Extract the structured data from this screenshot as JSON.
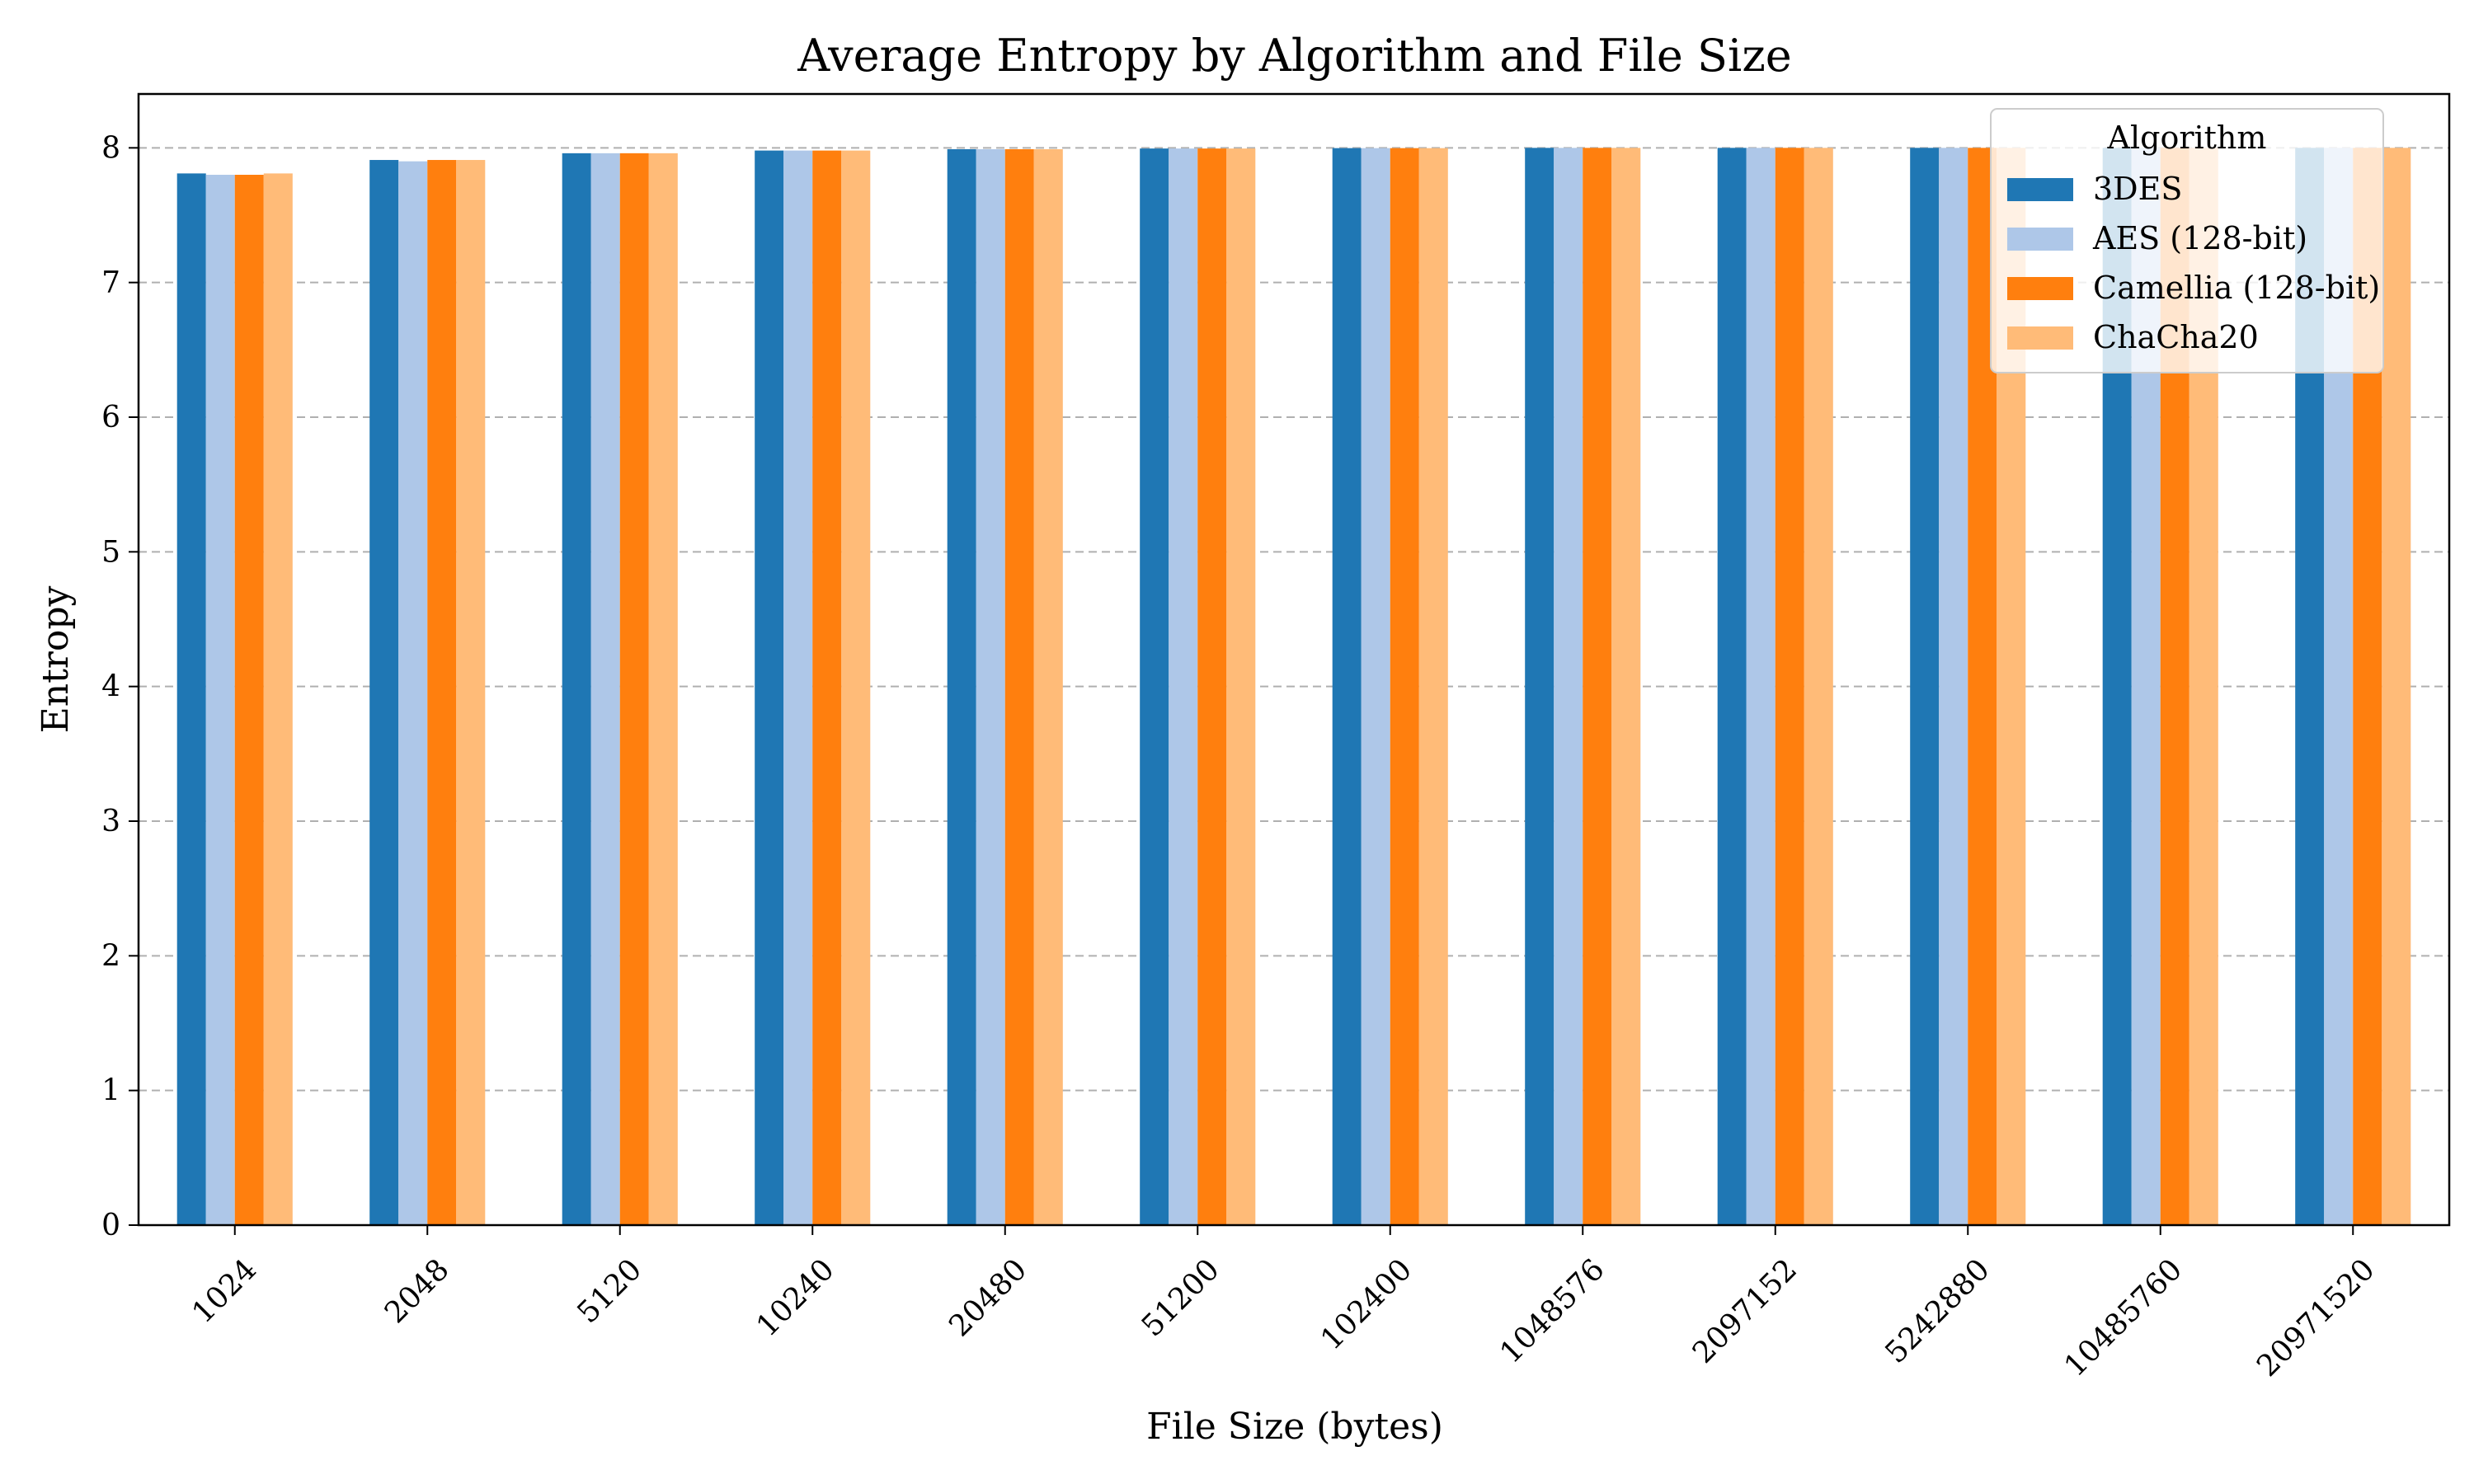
{
  "chart_data": {
    "type": "bar",
    "title": "Average Entropy by Algorithm and File Size",
    "xlabel": "File Size (bytes)",
    "ylabel": "Entropy",
    "ylim": [
      0,
      8.4
    ],
    "yticks": [
      0,
      1,
      2,
      3,
      4,
      5,
      6,
      7,
      8
    ],
    "grid": "y-dashed",
    "legend": {
      "title": "Algorithm",
      "placement": "top-right"
    },
    "categories": [
      "1024",
      "2048",
      "5120",
      "10240",
      "20480",
      "51200",
      "102400",
      "1048576",
      "2097152",
      "5242880",
      "10485760",
      "20971520"
    ],
    "series": [
      {
        "name": "3DES",
        "color": "#1f77b4",
        "values": [
          7.81,
          7.91,
          7.96,
          7.98,
          7.99,
          7.995,
          7.998,
          7.9998,
          7.9999,
          7.99996,
          7.99998,
          7.99999
        ]
      },
      {
        "name": "AES (128-bit)",
        "color": "#aec7e8",
        "values": [
          7.8,
          7.9,
          7.96,
          7.98,
          7.99,
          7.995,
          7.998,
          7.9998,
          7.9999,
          7.99996,
          7.99998,
          7.99999
        ]
      },
      {
        "name": "Camellia (128-bit)",
        "color": "#ff7f0e",
        "values": [
          7.8,
          7.91,
          7.96,
          7.98,
          7.99,
          7.995,
          7.998,
          7.9998,
          7.9999,
          7.99996,
          7.99998,
          7.99999
        ]
      },
      {
        "name": "ChaCha20",
        "color": "#ffbb78",
        "values": [
          7.81,
          7.91,
          7.96,
          7.98,
          7.99,
          7.995,
          7.998,
          7.9998,
          7.9999,
          7.99996,
          7.99998,
          7.99999
        ]
      }
    ]
  }
}
